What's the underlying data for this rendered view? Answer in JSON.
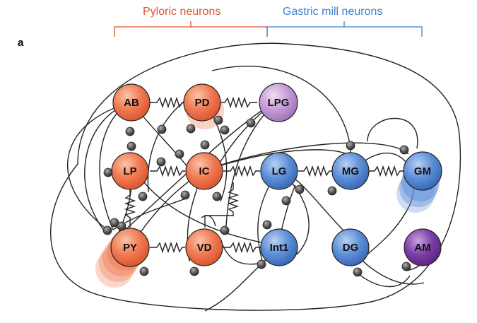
{
  "panel_label": "a",
  "groups": {
    "pyloric": {
      "label": "Pyloric neurons",
      "color": "#e2522f"
    },
    "gastric": {
      "label": "Gastric mill neurons",
      "color": "#3f7fcf"
    }
  },
  "colors": {
    "pyloric_fill": "#f07a52",
    "gastric_fill": "#5d8fd8",
    "lpg_fill": "#c79ad6",
    "am_fill": "#7d3ea8",
    "synapse": "#555555",
    "wire": "#222222"
  },
  "neurons": {
    "ab": "AB",
    "pd": "PD",
    "lpg": "LPG",
    "lp": "LP",
    "ic": "IC",
    "lg": "LG",
    "mg": "MG",
    "gm": "GM",
    "py": "PY",
    "vd": "VD",
    "int1": "Int1",
    "dg": "DG",
    "am": "AM"
  },
  "electrical_synapses": [
    [
      "AB",
      "PD"
    ],
    [
      "PD",
      "LPG"
    ],
    [
      "LP",
      "IC"
    ],
    [
      "IC",
      "LG"
    ],
    [
      "LG",
      "MG"
    ],
    [
      "MG",
      "GM"
    ],
    [
      "LP",
      "PY"
    ],
    [
      "PY",
      "VD"
    ],
    [
      "VD",
      "Int1"
    ],
    [
      "IC",
      "VD"
    ]
  ]
}
